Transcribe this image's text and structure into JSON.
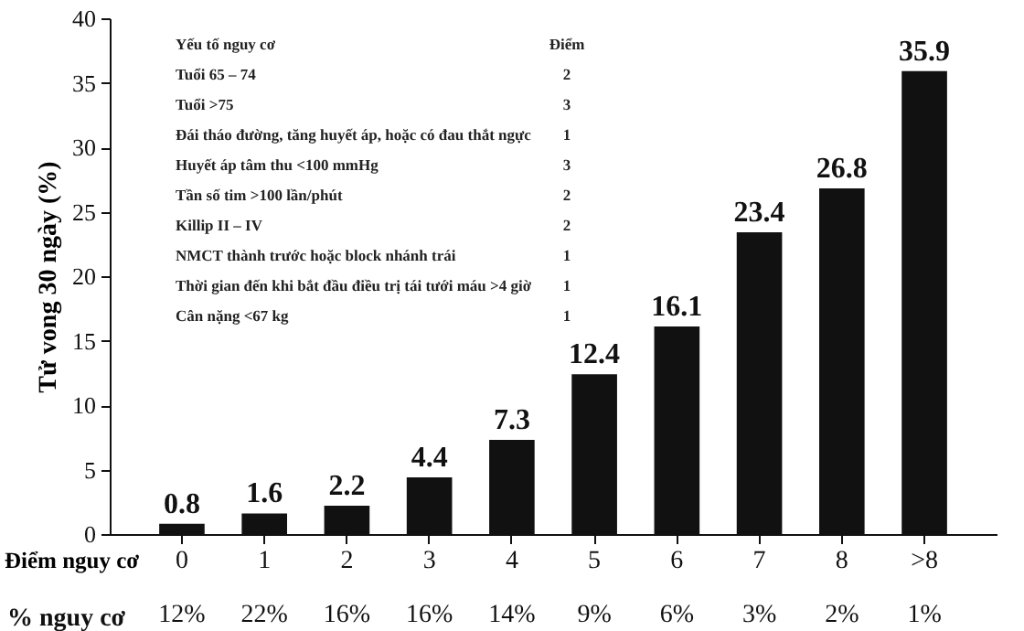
{
  "chart_data": {
    "type": "bar",
    "ylabel": "Tử vong 30 ngày (%)",
    "xlabel": "Điểm nguy cơ",
    "categories": [
      "0",
      "1",
      "2",
      "3",
      "4",
      "5",
      "6",
      "7",
      "8",
      ">8"
    ],
    "values": [
      0.8,
      1.6,
      2.2,
      4.4,
      7.3,
      12.4,
      16.1,
      23.4,
      26.8,
      35.9
    ],
    "color": "#111111",
    "data_labels": true,
    "grid": false,
    "ylim": [
      0,
      40
    ],
    "yticks": [
      0,
      5,
      10,
      15,
      20,
      25,
      30,
      35,
      40
    ],
    "annotations": [
      "Yếu tố nguy cơ",
      "Điểm",
      "Tuổi 65 – 74",
      "2",
      "Tuổi >75",
      "3",
      "Đái tháo đường, tăng huyết áp, hoặc có đau thắt ngực",
      "1",
      "Huyết áp tâm thu <100 mmHg",
      "3",
      "Tần số tim >100 lần/phút",
      "2",
      "Killip II – IV",
      "2",
      "NMCT thành trước hoặc block nhánh trái",
      "1",
      "Thời gian đến khi bắt đầu điều trị tái tưới máu >4 giờ",
      "1",
      "Cân nặng <67 kg",
      "1",
      "% nguy cơ",
      "12%",
      "22%",
      "16%",
      "16%",
      "14%",
      "9%",
      "6%",
      "3%",
      "2%",
      "1%"
    ]
  }
}
